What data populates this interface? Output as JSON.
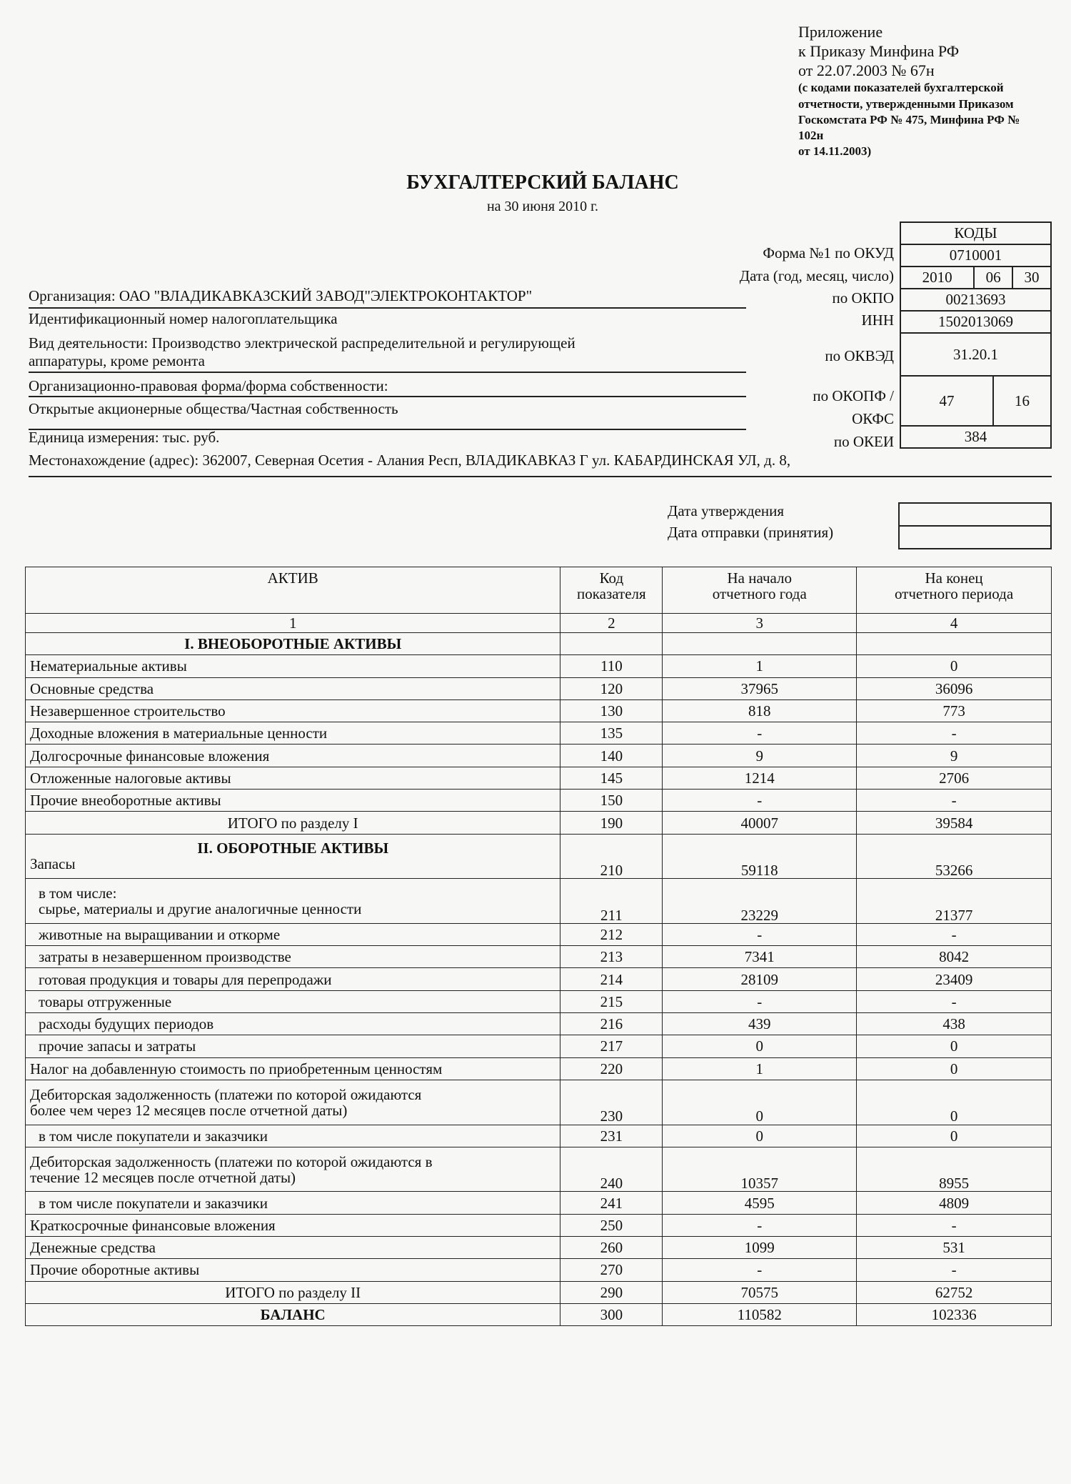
{
  "appendix": {
    "line1": "Приложение",
    "line2": "к Приказу Минфина РФ",
    "line3": "от 22.07.2003 № 67н",
    "note1": "(с кодами показателей бухгалтерской",
    "note2": "отчетности, утвержденными Приказом",
    "note3": "Госкомстата РФ № 475, Минфина РФ №",
    "note4": "102н",
    "note5": "от 14.11.2003)"
  },
  "title": "БУХГАЛТЕРСКИЙ БАЛАНС",
  "subtitle": "на 30 июня 2010 г.",
  "codes": {
    "header": "КОДЫ",
    "okud_label": "Форма №1 по ОКУД",
    "okud": "0710001",
    "date_label": "Дата (год, месяц, число)",
    "year": "2010",
    "month": "06",
    "day": "30",
    "okpo_label": "по ОКПО",
    "okpo": "00213693",
    "inn_label": "ИНН",
    "inn": "1502013069",
    "okved_label": "по ОКВЭД",
    "okved": "31.20.1",
    "okopf_label1": "по ОКОПФ /",
    "okopf_label2": "ОКФС",
    "okopf": "47",
    "okfs": "16",
    "okei_label": "по ОКЕИ",
    "okei": "384"
  },
  "org": {
    "organization": "Организация: ОАО \"ВЛАДИКАВКАЗСКИЙ ЗАВОД\"ЭЛЕКТРОКОНТАКТОР\"",
    "inn_line": "Идентификационный номер налогоплательщика",
    "activity1": "Вид деятельности: Производство электрической распределительной и регулирующей",
    "activity2": "аппаратуры, кроме ремонта",
    "legal_form_label": "Организационно-правовая форма/форма собственности:",
    "legal_form": "Открытые акционерные общества/Частная собственность",
    "unit": "Единица измерения: тыс. руб.",
    "address": "Местонахождение (адрес): 362007, Северная Осетия - Алания Респ, ВЛАДИКАВКАЗ Г ул. КАБАРДИНСКАЯ УЛ, д. 8,"
  },
  "dates": {
    "approval_label": "Дата утверждения",
    "sent_label": "Дата отправки (принятия)"
  },
  "table": {
    "headers": {
      "col1": "АКТИВ",
      "col2a": "Код",
      "col2b": "показателя",
      "col3a": "На начало",
      "col3b": "отчетного года",
      "col4a": "На конец",
      "col4b": "отчетного периода"
    },
    "col_numbers": [
      "1",
      "2",
      "3",
      "4"
    ],
    "rows": [
      {
        "type": "sec",
        "name": "I. ВНЕОБОРОТНЫЕ АКТИВЫ",
        "code": "",
        "start": "",
        "end": ""
      },
      {
        "name": "Нематериальные активы",
        "code": "110",
        "start": "1",
        "end": "0"
      },
      {
        "name": "Основные средства",
        "code": "120",
        "start": "37965",
        "end": "36096"
      },
      {
        "name": "Незавершенное строительство",
        "code": "130",
        "start": "818",
        "end": "773"
      },
      {
        "name": "Доходные вложения в материальные ценности",
        "code": "135",
        "start": "-",
        "end": "-"
      },
      {
        "name": "Долгосрочные финансовые вложения",
        "code": "140",
        "start": "9",
        "end": "9"
      },
      {
        "name": "Отложенные налоговые активы",
        "code": "145",
        "start": "1214",
        "end": "2706"
      },
      {
        "name": "Прочие внеоборотные активы",
        "code": "150",
        "start": "-",
        "end": "-"
      },
      {
        "type": "tot",
        "name": "ИТОГО по разделу I",
        "code": "190",
        "start": "40007",
        "end": "39584"
      },
      {
        "type": "sec2",
        "section": "II. ОБОРОТНЫЕ АКТИВЫ",
        "name": "Запасы",
        "code": "210",
        "start": "59118",
        "end": "53266"
      },
      {
        "type": "tall",
        "indent": true,
        "pre": "в том числе:",
        "name": "сырье, материалы и другие аналогичные ценности",
        "code": "211",
        "start": "23229",
        "end": "21377"
      },
      {
        "indent": true,
        "name": "животные на выращивании и откорме",
        "code": "212",
        "start": "-",
        "end": "-"
      },
      {
        "indent": true,
        "name": "затраты в незавершенном производстве",
        "code": "213",
        "start": "7341",
        "end": "8042"
      },
      {
        "indent": true,
        "name": "готовая продукция и товары для перепродажи",
        "code": "214",
        "start": "28109",
        "end": "23409"
      },
      {
        "indent": true,
        "name": "товары отгруженные",
        "code": "215",
        "start": "-",
        "end": "-"
      },
      {
        "indent": true,
        "name": "расходы будущих периодов",
        "code": "216",
        "start": "439",
        "end": "438"
      },
      {
        "indent": true,
        "name": "прочие запасы и затраты",
        "code": "217",
        "start": "0",
        "end": "0"
      },
      {
        "name": "Налог на добавленную стоимость по приобретенным ценностям",
        "code": "220",
        "start": "1",
        "end": "0"
      },
      {
        "type": "tall",
        "pre": "Дебиторская задолженность (платежи по которой ожидаются",
        "name": "более чем через 12 месяцев после отчетной даты)",
        "code": "230",
        "start": "0",
        "end": "0"
      },
      {
        "indent": true,
        "name": "в том числе покупатели и заказчики",
        "code": "231",
        "start": "0",
        "end": "0"
      },
      {
        "type": "tall",
        "pre": "Дебиторская задолженность (платежи по которой ожидаются в",
        "name": "течение 12 месяцев после отчетной даты)",
        "code": "240",
        "start": "10357",
        "end": "8955"
      },
      {
        "indent": true,
        "name": "в том числе покупатели и заказчики",
        "code": "241",
        "start": "4595",
        "end": "4809"
      },
      {
        "name": "Краткосрочные финансовые вложения",
        "code": "250",
        "start": "-",
        "end": "-"
      },
      {
        "name": "Денежные средства",
        "code": "260",
        "start": "1099",
        "end": "531"
      },
      {
        "name": "Прочие оборотные активы",
        "code": "270",
        "start": "-",
        "end": "-"
      },
      {
        "type": "tot",
        "name": "ИТОГО по разделу II",
        "code": "290",
        "start": "70575",
        "end": "62752"
      },
      {
        "type": "bold",
        "name": "БАЛАНС",
        "code": "300",
        "start": "110582",
        "end": "102336"
      }
    ]
  }
}
